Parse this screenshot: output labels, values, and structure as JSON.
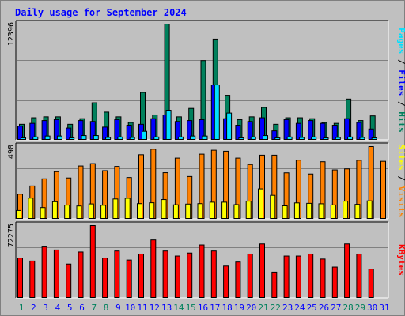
{
  "title": "Daily usage for September 2024",
  "colors": {
    "hits": "#00805c",
    "files": "#0000ff",
    "pages": "#00e0ff",
    "visits": "#ff8000",
    "sites": "#ffff00",
    "kbytes": "#ff0000",
    "weekend_day": "#00805c",
    "weekday": "#0000ff"
  },
  "chart_data": [
    {
      "type": "bar",
      "panel": "hits-files-pages",
      "categories": [
        "1",
        "2",
        "3",
        "4",
        "5",
        "6",
        "7",
        "8",
        "9",
        "10",
        "11",
        "12",
        "13",
        "14",
        "15",
        "16",
        "17",
        "18",
        "19",
        "20",
        "21",
        "22",
        "23",
        "24",
        "25",
        "26",
        "27",
        "28",
        "29",
        "30",
        "31"
      ],
      "ylim": [
        0,
        12396
      ],
      "ymax_label": "12396",
      "side_labels": [
        "Pages",
        "Files",
        "Hits"
      ],
      "separator": " / ",
      "series": [
        {
          "name": "Hits",
          "values": [
            1700,
            2400,
            2500,
            2500,
            1700,
            2300,
            4000,
            3000,
            2500,
            1900,
            5100,
            2700,
            12396,
            2500,
            3400,
            8500,
            10800,
            4800,
            2200,
            2500,
            3500,
            1700,
            2400,
            2400,
            2300,
            1900,
            1800,
            4400,
            2100,
            2600,
            0
          ]
        },
        {
          "name": "Files",
          "values": [
            1500,
            1800,
            2100,
            2200,
            1300,
            2100,
            2000,
            1400,
            2200,
            1600,
            1700,
            2300,
            2700,
            2000,
            2100,
            2200,
            5900,
            2300,
            1600,
            2000,
            2400,
            1000,
            2200,
            1800,
            2100,
            1800,
            1600,
            2300,
            1900,
            1200,
            0
          ]
        },
        {
          "name": "Pages",
          "values": [
            250,
            350,
            450,
            450,
            250,
            500,
            500,
            300,
            350,
            300,
            950,
            350,
            3200,
            350,
            450,
            450,
            5900,
            2900,
            250,
            350,
            500,
            250,
            350,
            300,
            350,
            250,
            300,
            350,
            300,
            250,
            0
          ]
        }
      ]
    },
    {
      "type": "bar",
      "panel": "visits-sites",
      "categories": [
        "1",
        "2",
        "3",
        "4",
        "5",
        "6",
        "7",
        "8",
        "9",
        "10",
        "11",
        "12",
        "13",
        "14",
        "15",
        "16",
        "17",
        "18",
        "19",
        "20",
        "21",
        "22",
        "23",
        "24",
        "25",
        "26",
        "27",
        "28",
        "29",
        "30",
        "31"
      ],
      "ylim": [
        0,
        498
      ],
      "ymax_label": "498",
      "side_labels": [
        "Sites",
        "Visits"
      ],
      "separator": " / ",
      "series": [
        {
          "name": "Visits",
          "values": [
            172,
            228,
            277,
            326,
            283,
            365,
            381,
            333,
            362,
            286,
            442,
            480,
            319,
            419,
            293,
            446,
            473,
            466,
            419,
            375,
            439,
            439,
            318,
            405,
            310,
            394,
            338,
            345,
            404,
            498,
            397
          ]
        },
        {
          "name": "Sites",
          "values": [
            60,
            145,
            80,
            120,
            97,
            91,
            105,
            96,
            139,
            144,
            107,
            113,
            135,
            99,
            104,
            107,
            117,
            117,
            100,
            124,
            208,
            164,
            92,
            112,
            109,
            106,
            98,
            124,
            102,
            126,
            0
          ]
        }
      ]
    },
    {
      "type": "bar",
      "panel": "kbytes",
      "categories": [
        "1",
        "2",
        "3",
        "4",
        "5",
        "6",
        "7",
        "8",
        "9",
        "10",
        "11",
        "12",
        "13",
        "14",
        "15",
        "16",
        "17",
        "18",
        "19",
        "20",
        "21",
        "22",
        "23",
        "24",
        "25",
        "26",
        "27",
        "28",
        "29",
        "30",
        "31"
      ],
      "ylim": [
        0,
        72275
      ],
      "ymax_label": "72275",
      "side_labels": [
        "KBytes"
      ],
      "series": [
        {
          "name": "KBytes",
          "values": [
            40000,
            37000,
            51000,
            48000,
            34000,
            46000,
            72275,
            40000,
            47000,
            38000,
            44000,
            58000,
            47000,
            42000,
            45000,
            53000,
            47000,
            32000,
            36000,
            44000,
            54000,
            26000,
            42000,
            42000,
            44000,
            39000,
            31000,
            54000,
            44000,
            29000,
            0
          ]
        }
      ]
    }
  ],
  "x_axis": {
    "weekend_days": [
      1,
      7,
      8,
      14,
      15,
      21,
      22,
      28,
      29
    ]
  }
}
